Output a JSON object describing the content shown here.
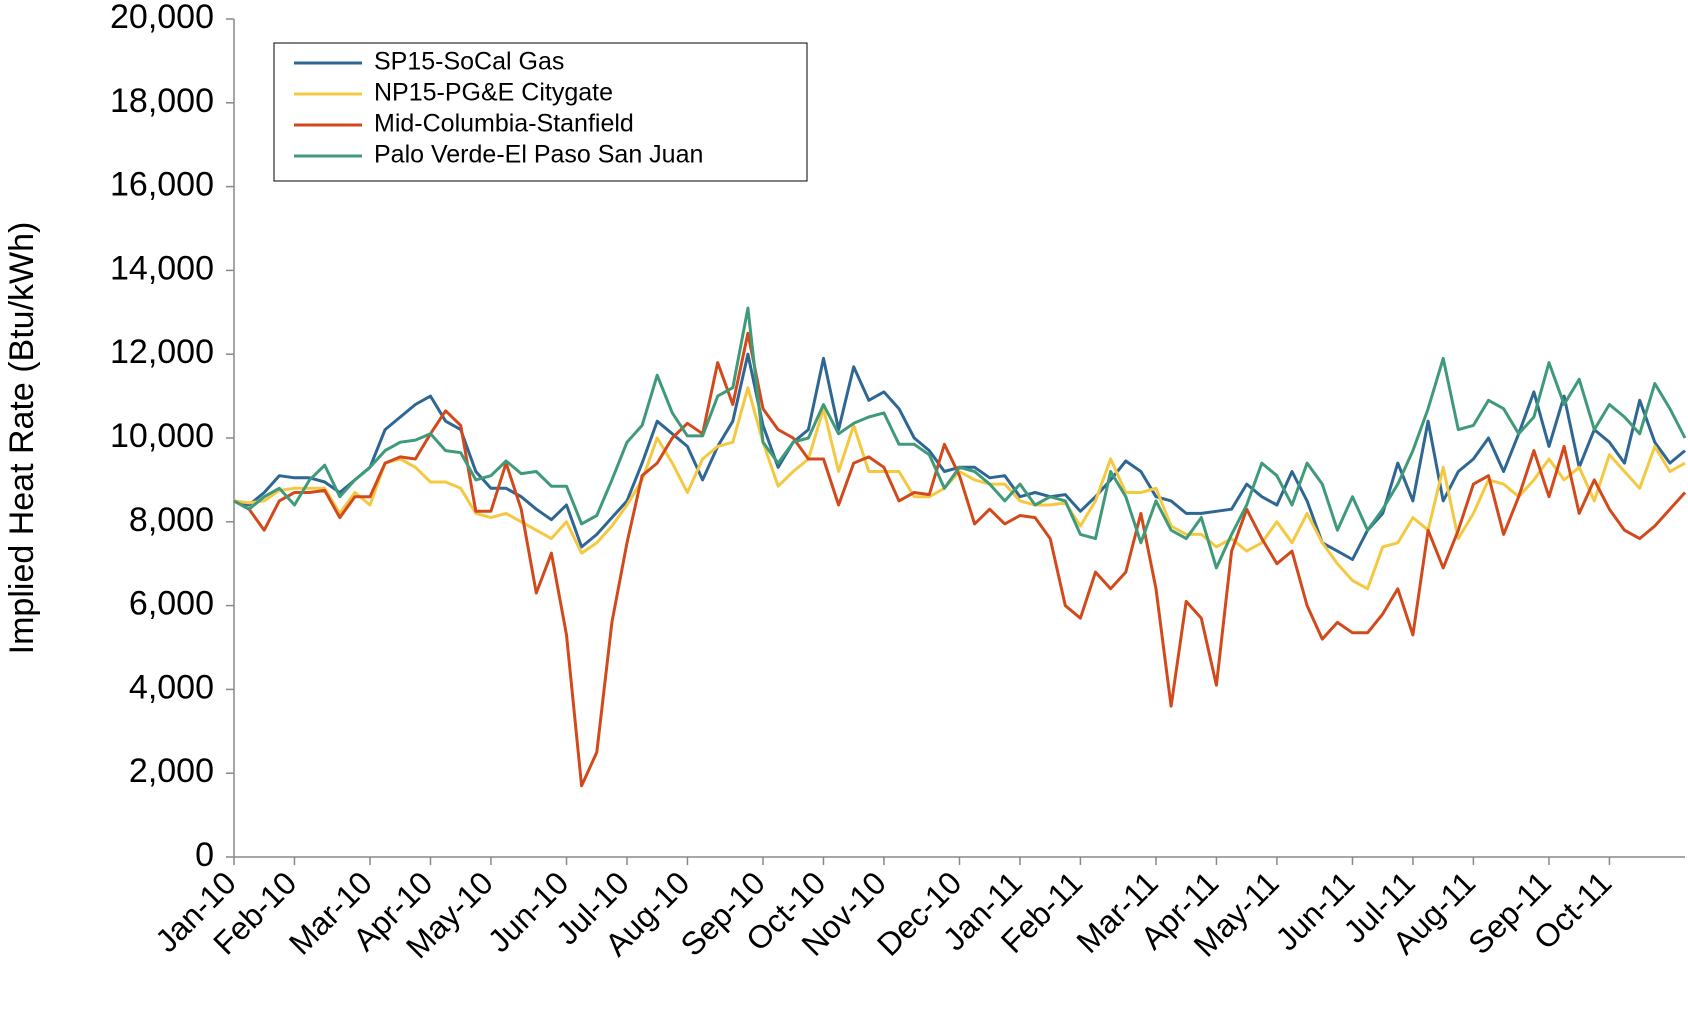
{
  "chart_data": {
    "type": "line",
    "y_label": "Implied Heat Rate (Btu/kWh)",
    "categories": [
      "Jan-10",
      null,
      null,
      null,
      "Feb-10",
      null,
      null,
      null,
      null,
      "Mar-10",
      null,
      null,
      null,
      "Apr-10",
      null,
      null,
      null,
      "May-10",
      null,
      null,
      null,
      null,
      "Jun-10",
      null,
      null,
      null,
      "Jul-10",
      null,
      null,
      null,
      "Aug-10",
      null,
      null,
      null,
      null,
      "Sep-10",
      null,
      null,
      null,
      "Oct-10",
      null,
      null,
      null,
      "Nov-10",
      null,
      null,
      null,
      null,
      "Dec-10",
      null,
      null,
      null,
      "Jan-11",
      null,
      null,
      null,
      "Feb-11",
      null,
      null,
      null,
      null,
      "Mar-11",
      null,
      null,
      null,
      "Apr-11",
      null,
      null,
      null,
      "May-11",
      null,
      null,
      null,
      null,
      "Jun-11",
      null,
      null,
      null,
      "Jul-11",
      null,
      null,
      null,
      "Aug-11",
      null,
      null,
      null,
      null,
      "Sep-11",
      null,
      null,
      null,
      "Oct-11",
      null,
      null,
      null,
      null,
      null
    ],
    "series": [
      {
        "name": "SP15-SoCal Gas",
        "color": "#2e6694",
        "values": [
          8500,
          8400,
          8700,
          9100,
          9050,
          9050,
          8950,
          8700,
          9000,
          9300,
          10200,
          10500,
          10800,
          11000,
          10400,
          10200,
          9200,
          8800,
          8800,
          8600,
          8300,
          8050,
          8400,
          7400,
          7700,
          8100,
          8500,
          9400,
          10400,
          10100,
          9800,
          9000,
          9800,
          10400,
          12000,
          10300,
          9300,
          9900,
          10200,
          11900,
          10200,
          11700,
          10900,
          11100,
          10700,
          10000,
          9700,
          9200,
          9300,
          9300,
          9050,
          9100,
          8600,
          8700,
          8600,
          8650,
          8250,
          8600,
          9000,
          9450,
          9200,
          8600,
          8500,
          8200,
          8200,
          8250,
          8300,
          8900,
          8600,
          8400,
          9200,
          8500,
          7500,
          7300,
          7100,
          7800,
          8200,
          9400,
          8500,
          10400,
          8500,
          9200,
          9500,
          10000,
          9200,
          10100,
          11100,
          9800,
          11000,
          9300,
          10200,
          9900,
          9400,
          10900,
          9900,
          9400,
          9700
        ]
      },
      {
        "name": "NP15-PG&E Citygate",
        "color": "#f5c842",
        "values": [
          8500,
          8450,
          8500,
          8750,
          8800,
          8800,
          8800,
          8200,
          8700,
          8400,
          9400,
          9500,
          9300,
          8950,
          8950,
          8800,
          8200,
          8100,
          8200,
          8000,
          7800,
          7600,
          8000,
          7250,
          7500,
          7900,
          8400,
          9000,
          10000,
          9400,
          8700,
          9500,
          9800,
          9900,
          11200,
          9900,
          8850,
          9200,
          9500,
          10700,
          9200,
          10300,
          9200,
          9200,
          9200,
          8600,
          8600,
          8800,
          9200,
          9000,
          8900,
          8900,
          8500,
          8400,
          8400,
          8450,
          7900,
          8500,
          9500,
          8700,
          8700,
          8800,
          7900,
          7700,
          7700,
          7400,
          7600,
          7300,
          7500,
          8000,
          7500,
          8200,
          7500,
          7000,
          6600,
          6400,
          7400,
          7500,
          8100,
          7800,
          9300,
          7600,
          8200,
          9000,
          8900,
          8600,
          9000,
          9500,
          9000,
          9300,
          8500,
          9600,
          9200,
          8800,
          9800,
          9200,
          9400
        ]
      },
      {
        "name": "Mid-Columbia-Stanfield",
        "color": "#d24a1c",
        "values": [
          8500,
          8300,
          7800,
          8500,
          8700,
          8700,
          8750,
          8100,
          8600,
          8600,
          9400,
          9550,
          9500,
          10100,
          10650,
          10300,
          8250,
          8250,
          9400,
          8300,
          6300,
          7250,
          5300,
          1700,
          2500,
          5600,
          7500,
          9100,
          9400,
          10000,
          10350,
          10100,
          11800,
          10800,
          12500,
          10700,
          10200,
          10000,
          9500,
          9500,
          8400,
          9400,
          9550,
          9300,
          8500,
          8700,
          8650,
          9850,
          9100,
          7950,
          8300,
          7950,
          8150,
          8100,
          7600,
          6000,
          5700,
          6800,
          6400,
          6800,
          8200,
          6400,
          3600,
          6100,
          5700,
          4100,
          7300,
          8300,
          7600,
          7000,
          7300,
          6000,
          5200,
          5600,
          5350,
          5350,
          5800,
          6400,
          5300,
          7800,
          6900,
          7800,
          8900,
          9100,
          7700,
          8600,
          9700,
          8600,
          9800,
          8200,
          9000,
          8300,
          7800,
          7600,
          7900,
          8300,
          8700
        ]
      },
      {
        "name": "Palo Verde-El Paso San Juan",
        "color": "#3f9a7a",
        "values": [
          8500,
          8300,
          8600,
          8800,
          8400,
          9000,
          9350,
          8600,
          9000,
          9300,
          9700,
          9900,
          9950,
          10100,
          9700,
          9650,
          9000,
          9100,
          9450,
          9150,
          9200,
          8850,
          8850,
          7950,
          8150,
          9000,
          9900,
          10300,
          11500,
          10600,
          10050,
          10050,
          11000,
          11200,
          13100,
          9900,
          9400,
          9900,
          10000,
          10800,
          10100,
          10350,
          10500,
          10600,
          9850,
          9850,
          9600,
          8800,
          9300,
          9200,
          8900,
          8500,
          8900,
          8400,
          8600,
          8500,
          7700,
          7600,
          9200,
          8600,
          7500,
          8500,
          7800,
          7600,
          8100,
          6900,
          7700,
          8400,
          9400,
          9100,
          8400,
          9400,
          8900,
          7800,
          8600,
          7800,
          8300,
          8900,
          9700,
          10700,
          11900,
          10200,
          10300,
          10900,
          10700,
          10100,
          10500,
          11800,
          10800,
          11400,
          10200,
          10800,
          10500,
          10100,
          11300,
          10700,
          10000
        ]
      }
    ],
    "ylim": [
      0,
      20000
    ],
    "yticks": [
      0,
      {
        "value": 2000,
        "label": "2,000"
      },
      {
        "value": 4000,
        "label": "4,000"
      },
      {
        "value": 6000,
        "label": "6,000"
      },
      {
        "value": 8000,
        "label": "8,000"
      },
      {
        "value": 10000,
        "label": "10,000"
      },
      {
        "value": 12000,
        "label": "12,000"
      },
      {
        "value": 14000,
        "label": "14,000"
      },
      {
        "value": 16000,
        "label": "16,000"
      },
      {
        "value": 18000,
        "label": "18,000"
      },
      {
        "value": 20000,
        "label": "20,000"
      }
    ],
    "grid": false,
    "legend": "top-left"
  }
}
